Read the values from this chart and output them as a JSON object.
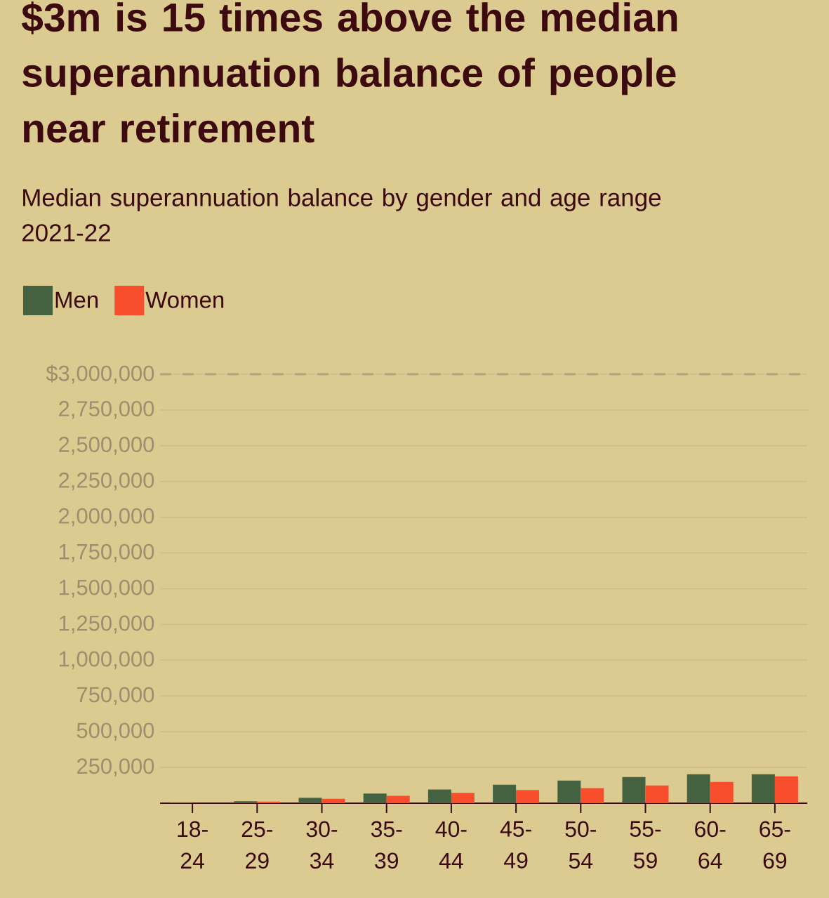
{
  "chart_data": {
    "type": "bar",
    "title": "$3m is 15 times above the median superannuation balance of people near retirement",
    "subtitle": "Median superannuation balance by gender and age range 2021-22",
    "categories": [
      "18-24",
      "25-29",
      "30-34",
      "35-39",
      "40-44",
      "45-49",
      "50-54",
      "55-59",
      "60-64",
      "65-69"
    ],
    "series": [
      {
        "name": "Men",
        "color": "#44623f",
        "values": [
          3000,
          13000,
          38000,
          67000,
          96000,
          129000,
          158000,
          183000,
          203000,
          203000
        ]
      },
      {
        "name": "Women",
        "color": "#f94e2b",
        "values": [
          null,
          11000,
          31000,
          52000,
          72000,
          92000,
          106000,
          124000,
          149000,
          188000
        ]
      }
    ],
    "ylim": [
      0,
      3000000
    ],
    "yticks": [
      {
        "value": 250000,
        "label": "250,000"
      },
      {
        "value": 500000,
        "label": "500,000"
      },
      {
        "value": 750000,
        "label": "750,000"
      },
      {
        "value": 1000000,
        "label": "1,000,000"
      },
      {
        "value": 1250000,
        "label": "1,250,000"
      },
      {
        "value": 1500000,
        "label": "1,500,000"
      },
      {
        "value": 1750000,
        "label": "1,750,000"
      },
      {
        "value": 2000000,
        "label": "2,000,000"
      },
      {
        "value": 2250000,
        "label": "2,250,000"
      },
      {
        "value": 2500000,
        "label": "2,500,000"
      },
      {
        "value": 2750000,
        "label": "2,750,000"
      },
      {
        "value": 3000000,
        "label": "$3,000,000"
      }
    ],
    "ref_lines": [
      {
        "axis": "y",
        "value": 3000000,
        "color": "#b5a27f",
        "line_style": "dashed"
      }
    ],
    "grid": "y",
    "legend": "top left"
  }
}
